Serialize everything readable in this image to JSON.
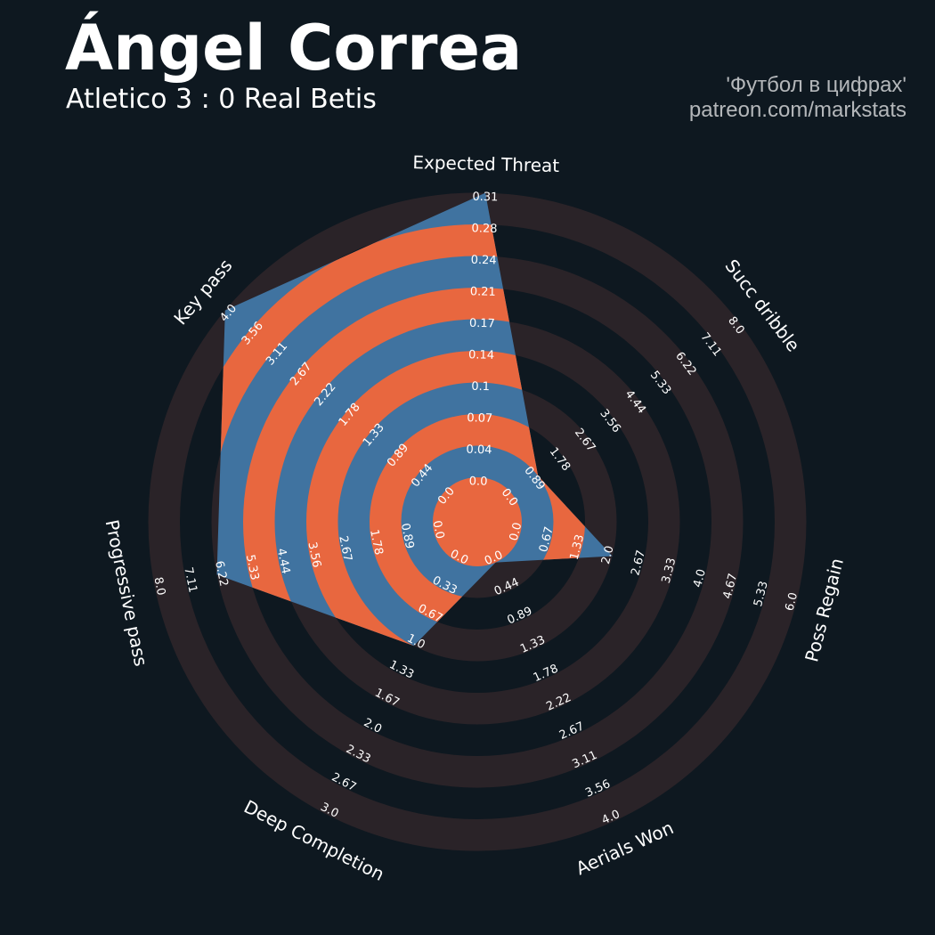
{
  "header": {
    "title": "Ángel Correa",
    "subtitle": "Atletico 3 : 0 Real Betis",
    "credit_line1": "'Футбол в цифрах'",
    "credit_line2": "patreon.com/markstats"
  },
  "colors": {
    "background": "#0e1820",
    "ring_dark": "#2a2328",
    "radar_fill": "#4073a0",
    "radar_ring": "#e8673f",
    "text": "#ffffff",
    "credit": "#b4b7ba"
  },
  "chart_data": {
    "type": "radar",
    "ring_count": 9,
    "params": [
      {
        "name": "Expected Threat",
        "value": 0.31,
        "ticks": [
          "0.0",
          "0.04",
          "0.07",
          "0.1",
          "0.14",
          "0.17",
          "0.21",
          "0.24",
          "0.28",
          "0.31"
        ]
      },
      {
        "name": "Succ dribble",
        "value": 0.89,
        "ticks": [
          "0.0",
          "0.89",
          "1.78",
          "2.67",
          "3.56",
          "4.44",
          "5.33",
          "6.22",
          "7.11",
          "8.0"
        ]
      },
      {
        "name": "Poss Regain",
        "value": 2.0,
        "ticks": [
          "0.0",
          "0.67",
          "1.33",
          "2.0",
          "2.67",
          "3.33",
          "4.0",
          "4.67",
          "5.33",
          "6.0"
        ]
      },
      {
        "name": "Aerials Won",
        "value": 0.0,
        "ticks": [
          "0.0",
          "0.44",
          "0.89",
          "1.33",
          "1.78",
          "2.22",
          "2.67",
          "3.11",
          "3.56",
          "4.0"
        ]
      },
      {
        "name": "Deep Completion",
        "value": 1.0,
        "ticks": [
          "0.0",
          "0.33",
          "0.67",
          "1.0",
          "1.33",
          "1.67",
          "2.0",
          "2.33",
          "2.67",
          "3.0"
        ]
      },
      {
        "name": "Progressive pass",
        "value": 6.22,
        "ticks": [
          "0.0",
          "0.89",
          "1.78",
          "2.67",
          "3.56",
          "4.44",
          "5.33",
          "6.22",
          "7.11",
          "8.0"
        ]
      },
      {
        "name": "Key pass",
        "value": 4.0,
        "ticks": [
          "0.0",
          "0.44",
          "0.89",
          "1.33",
          "1.78",
          "2.22",
          "2.67",
          "3.11",
          "3.56",
          "4.0"
        ]
      }
    ]
  }
}
